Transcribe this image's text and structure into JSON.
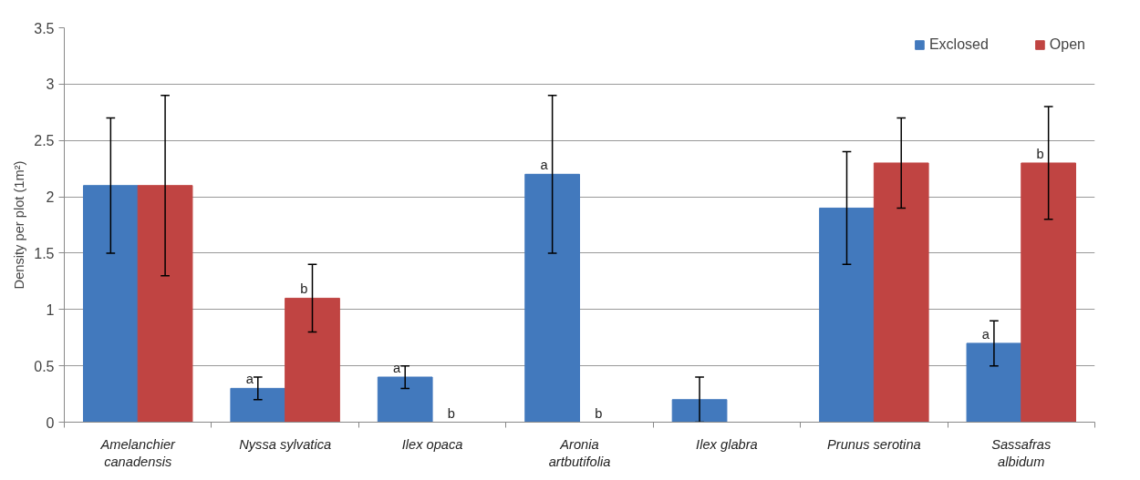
{
  "chart_data": {
    "type": "bar",
    "ylabel": "Density per plot (1m²)",
    "categories": [
      "Amelanchier\ncanadensis",
      "Nyssa sylvatica",
      "Ilex opaca",
      "Aronia\nartbutifolia",
      "Ilex glabra",
      "Prunus serotina",
      "Sassafras\nalbidum"
    ],
    "series": [
      {
        "name": "Exclosed",
        "color": "#4279bd",
        "values": [
          2.1,
          0.3,
          0.4,
          2.2,
          0.2,
          1.9,
          0.7
        ],
        "value_labels": [
          null,
          "a",
          "a",
          "a",
          null,
          null,
          "a"
        ],
        "errors": [
          [
            1.5,
            2.7
          ],
          [
            0.2,
            0.4
          ],
          [
            0.3,
            0.5
          ],
          [
            1.5,
            2.9
          ],
          [
            0,
            0.4
          ],
          [
            1.4,
            2.4
          ],
          [
            0.5,
            0.9
          ]
        ]
      },
      {
        "name": "Open",
        "color": "#c04442",
        "values": [
          2.1,
          1.1,
          0,
          0,
          0,
          2.3,
          2.3
        ],
        "value_labels": [
          null,
          "b",
          "b",
          "b",
          null,
          null,
          "b"
        ],
        "errors": [
          [
            1.3,
            2.9
          ],
          [
            0.8,
            1.4
          ],
          null,
          null,
          null,
          [
            1.9,
            2.7
          ],
          [
            1.8,
            2.8
          ]
        ]
      }
    ],
    "ylim": [
      0,
      3.5
    ],
    "yticks": [
      0,
      0.5,
      1,
      1.5,
      2,
      2.5,
      3,
      3.5
    ],
    "grid": "y",
    "legend": "top right"
  }
}
